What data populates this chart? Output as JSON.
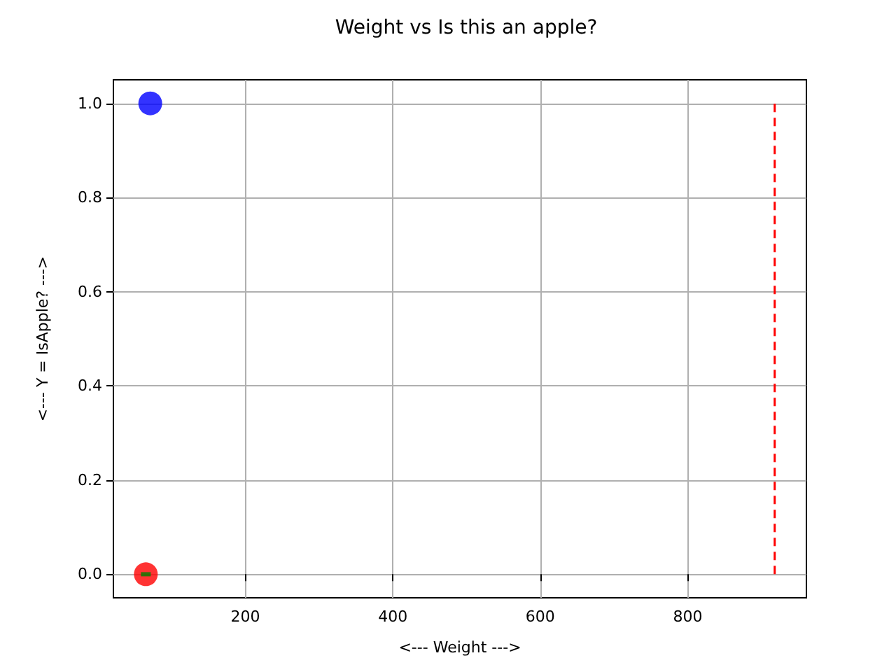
{
  "chart_data": {
    "type": "scatter",
    "title": "Weight vs Is this an apple?",
    "xlabel": "<--- Weight --->",
    "ylabel": "<--- Y = IsApple? --->",
    "xlim": [
      21,
      961
    ],
    "xticks": [
      200,
      400,
      600,
      800
    ],
    "ylim": [
      -0.05,
      1.05
    ],
    "yticks": [
      {
        "value": 0,
        "label": "0.0"
      },
      0.2,
      0.4,
      0.6,
      0.8,
      {
        "value": 1,
        "label": "1.0"
      }
    ],
    "grid": true,
    "series": [
      {
        "color": "#0000ff",
        "marker": "circle",
        "x": [
          71
        ],
        "values": [
          1
        ]
      },
      {
        "color": "#ff0000",
        "marker": "circle",
        "x": [
          65
        ],
        "values": [
          0
        ]
      },
      {
        "type": "scatter",
        "color": "#008000",
        "marker": "square",
        "x": [
          65
        ],
        "values": [
          0
        ]
      },
      {
        "type": "line",
        "color": "#ff0000",
        "marker": "none",
        "line_style": "dashed",
        "x": [
          918,
          918
        ],
        "values": [
          0,
          1
        ]
      }
    ]
  }
}
